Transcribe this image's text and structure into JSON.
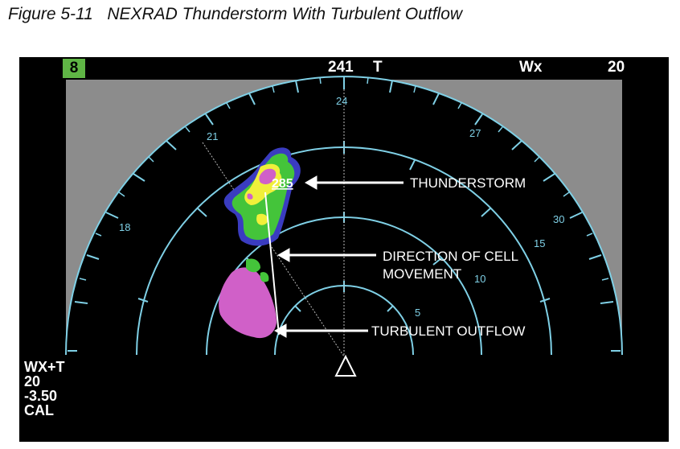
{
  "caption": "Figure 5-11   NEXRAD Thunderstorm With Turbulent Outflow",
  "top_bar": {
    "range_badge": "8",
    "heading": "241",
    "heading_ref": "T",
    "mode": "Wx",
    "range": "20"
  },
  "compass_labels": [
    "18",
    "21",
    "24",
    "27",
    "30"
  ],
  "range_ring_labels": [
    "5",
    "10",
    "15"
  ],
  "cell_top": "285",
  "status": {
    "mode": "WX+T",
    "range": "20",
    "tilt": "-3.50",
    "gain": "CAL"
  },
  "annotations": {
    "thunderstorm": "THUNDERSTORM",
    "direction_line1": "DIRECTION OF CELL",
    "direction_line2": "MOVEMENT",
    "outflow": "TURBULENT OUTFLOW"
  },
  "colors": {
    "screen_bg": "#000000",
    "arc": "#7fd0e6",
    "gray_zone": "#8c8c8c",
    "precip_green": "#44c43a",
    "precip_yellow": "#f0f03a",
    "precip_magenta": "#d060c8",
    "precip_blue": "#3a3cc0",
    "badge_green": "#5fb545"
  }
}
